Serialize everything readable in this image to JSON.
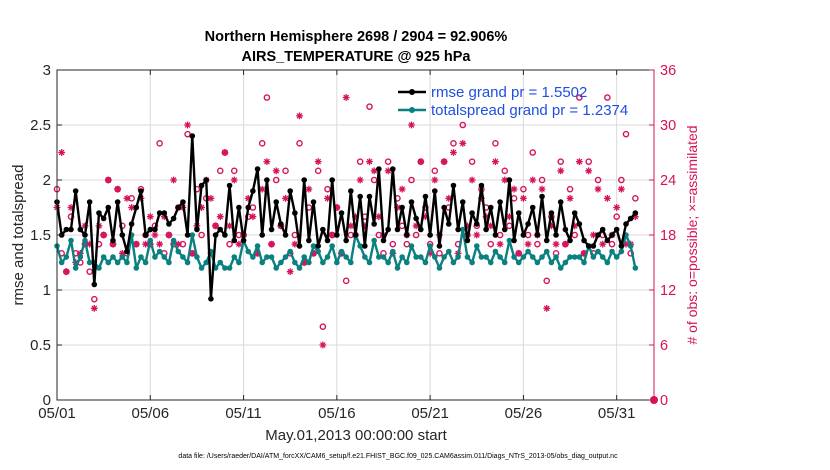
{
  "chart_data": {
    "type": "line",
    "title_line1": "Northern Hemisphere 2698 / 2904 = 92.906%",
    "title_line2": "AIRS_TEMPERATURE @ 925 hPa",
    "xlabel": "May.01,2013 00:00:00 start",
    "ylabel": "rmse and totalspread",
    "y2label": "# of obs: o=possible; ×=assimilated",
    "footnote": "data file: /Users/raeder/DAI/ATM_forcXX/CAM6_setup/f.e21.FHIST_BGC.f09_025.CAM6assim.011/Diags_NTrS_2013-05/obs_diag_output.nc",
    "xlim": [
      1,
      33
    ],
    "ylim": [
      0,
      3
    ],
    "y2lim": [
      0,
      36
    ],
    "xticks": [
      1,
      6,
      11,
      16,
      21,
      26,
      31
    ],
    "xtick_labels": [
      "05/01",
      "05/06",
      "05/11",
      "05/16",
      "05/21",
      "05/26",
      "05/31"
    ],
    "yticks": [
      0,
      0.5,
      1,
      1.5,
      2,
      2.5,
      3
    ],
    "ytick_labels": [
      "0",
      "0.5",
      "1",
      "1.5",
      "2",
      "2.5",
      "3"
    ],
    "y2ticks": [
      0,
      6,
      12,
      18,
      24,
      30,
      36
    ],
    "y2tick_labels": [
      "0",
      "6",
      "12",
      "18",
      "24",
      "30",
      "36"
    ],
    "grid": true,
    "legend": {
      "location": "top-right",
      "entries": [
        "rmse grand pr = 1.5502",
        "totalspread grand pr = 1.2374"
      ]
    },
    "series": [
      {
        "name": "rmse grand pr = 1.5502",
        "color": "#000000",
        "x": [
          1.0,
          1.25,
          1.5,
          1.75,
          2.0,
          2.25,
          2.5,
          2.75,
          3.0,
          3.25,
          3.5,
          3.75,
          4.0,
          4.25,
          4.5,
          4.75,
          5.0,
          5.25,
          5.5,
          5.75,
          6.0,
          6.25,
          6.5,
          6.75,
          7.0,
          7.25,
          7.5,
          7.75,
          8.0,
          8.25,
          8.5,
          8.75,
          9.0,
          9.25,
          9.5,
          9.75,
          10.0,
          10.25,
          10.5,
          10.75,
          11.0,
          11.25,
          11.5,
          11.75,
          12.0,
          12.25,
          12.5,
          12.75,
          13.0,
          13.25,
          13.5,
          13.75,
          14.0,
          14.25,
          14.5,
          14.75,
          15.0,
          15.25,
          15.5,
          15.75,
          16.0,
          16.25,
          16.5,
          16.75,
          17.0,
          17.25,
          17.5,
          17.75,
          18.0,
          18.25,
          18.5,
          18.75,
          19.0,
          19.25,
          19.5,
          19.75,
          20.0,
          20.25,
          20.5,
          20.75,
          21.0,
          21.25,
          21.5,
          21.75,
          22.0,
          22.25,
          22.5,
          22.75,
          23.0,
          23.25,
          23.5,
          23.75,
          24.0,
          24.25,
          24.5,
          24.75,
          25.0,
          25.25,
          25.5,
          25.75,
          26.0,
          26.25,
          26.5,
          26.75,
          27.0,
          27.25,
          27.5,
          27.75,
          28.0,
          28.25,
          28.5,
          28.75,
          29.0,
          29.25,
          29.5,
          29.75,
          30.0,
          30.25,
          30.5,
          30.75,
          31.0,
          31.25,
          31.5,
          31.75,
          32.0
        ],
        "values": [
          1.8,
          1.5,
          1.55,
          1.55,
          1.9,
          1.55,
          1.5,
          1.8,
          1.05,
          1.7,
          1.65,
          1.75,
          1.45,
          1.8,
          1.5,
          1.35,
          1.6,
          1.75,
          1.9,
          1.5,
          1.55,
          1.55,
          1.7,
          1.7,
          1.6,
          1.65,
          1.75,
          1.8,
          1.5,
          2.4,
          1.55,
          1.95,
          2.0,
          0.92,
          1.5,
          1.55,
          1.5,
          1.95,
          1.45,
          1.75,
          1.45,
          1.75,
          1.9,
          2.1,
          1.5,
          2.0,
          1.55,
          1.8,
          1.6,
          1.5,
          1.9,
          1.7,
          1.4,
          2.0,
          1.45,
          1.8,
          1.4,
          1.55,
          1.45,
          2.0,
          1.5,
          1.7,
          1.45,
          1.9,
          1.5,
          1.85,
          1.4,
          1.85,
          1.6,
          2.1,
          1.45,
          1.55,
          2.1,
          1.55,
          1.75,
          1.5,
          1.8,
          1.65,
          1.55,
          1.85,
          1.5,
          1.9,
          1.4,
          1.75,
          1.6,
          1.95,
          1.55,
          1.8,
          1.45,
          1.7,
          1.6,
          1.95,
          1.55,
          1.75,
          1.5,
          1.8,
          1.55,
          2.0,
          1.45,
          1.7,
          1.5,
          1.6,
          1.75,
          1.5,
          1.85,
          1.45,
          1.7,
          1.5,
          1.8,
          1.55,
          1.45,
          1.7,
          1.6,
          1.45,
          1.4,
          1.4,
          1.5,
          1.55,
          1.45,
          1.5,
          1.55,
          1.4,
          1.6,
          1.65,
          1.7
        ]
      },
      {
        "name": "totalspread grand pr = 1.2374",
        "color": "#0a8080",
        "x": [
          1.0,
          1.25,
          1.5,
          1.75,
          2.0,
          2.25,
          2.5,
          2.75,
          3.0,
          3.25,
          3.5,
          3.75,
          4.0,
          4.25,
          4.5,
          4.75,
          5.0,
          5.25,
          5.5,
          5.75,
          6.0,
          6.25,
          6.5,
          6.75,
          7.0,
          7.25,
          7.5,
          7.75,
          8.0,
          8.25,
          8.5,
          8.75,
          9.0,
          9.25,
          9.5,
          9.75,
          10.0,
          10.25,
          10.5,
          10.75,
          11.0,
          11.25,
          11.5,
          11.75,
          12.0,
          12.25,
          12.5,
          12.75,
          13.0,
          13.25,
          13.5,
          13.75,
          14.0,
          14.25,
          14.5,
          14.75,
          15.0,
          15.25,
          15.5,
          15.75,
          16.0,
          16.25,
          16.5,
          16.75,
          17.0,
          17.25,
          17.5,
          17.75,
          18.0,
          18.25,
          18.5,
          18.75,
          19.0,
          19.25,
          19.5,
          19.75,
          20.0,
          20.25,
          20.5,
          20.75,
          21.0,
          21.25,
          21.5,
          21.75,
          22.0,
          22.25,
          22.5,
          22.75,
          23.0,
          23.25,
          23.5,
          23.75,
          24.0,
          24.25,
          24.5,
          24.75,
          25.0,
          25.25,
          25.5,
          25.75,
          26.0,
          26.25,
          26.5,
          26.75,
          27.0,
          27.25,
          27.5,
          27.75,
          28.0,
          28.25,
          28.5,
          28.75,
          29.0,
          29.25,
          29.5,
          29.75,
          30.0,
          30.25,
          30.5,
          30.75,
          31.0,
          31.25,
          31.5,
          31.75,
          32.0
        ],
        "values": [
          1.4,
          1.25,
          1.3,
          1.45,
          1.2,
          1.3,
          1.45,
          1.25,
          1.25,
          1.2,
          1.3,
          1.25,
          1.3,
          1.25,
          1.3,
          1.25,
          1.5,
          1.2,
          1.3,
          1.25,
          1.45,
          1.3,
          1.35,
          1.3,
          1.25,
          1.45,
          1.35,
          1.3,
          1.25,
          1.5,
          1.3,
          1.2,
          1.25,
          1.35,
          1.2,
          1.25,
          1.2,
          1.2,
          1.3,
          1.25,
          1.45,
          1.35,
          1.3,
          1.4,
          1.25,
          1.3,
          1.3,
          1.2,
          1.25,
          1.3,
          1.35,
          1.25,
          1.2,
          1.3,
          1.25,
          1.4,
          1.35,
          1.25,
          1.3,
          1.4,
          1.25,
          1.35,
          1.3,
          1.25,
          1.5,
          1.4,
          1.3,
          1.25,
          1.45,
          1.3,
          1.3,
          1.25,
          1.35,
          1.2,
          1.3,
          1.25,
          1.4,
          1.3,
          1.3,
          1.25,
          1.4,
          1.3,
          1.2,
          1.3,
          1.35,
          1.25,
          1.3,
          1.55,
          1.3,
          1.25,
          1.4,
          1.3,
          1.3,
          1.25,
          1.35,
          1.3,
          1.25,
          1.45,
          1.3,
          1.25,
          1.3,
          1.35,
          1.3,
          1.25,
          1.3,
          1.35,
          1.25,
          1.3,
          1.2,
          1.25,
          1.3,
          1.3,
          1.3,
          1.25,
          1.4,
          1.3,
          1.35,
          1.3,
          1.25,
          1.35,
          1.3,
          1.35,
          1.5,
          1.4,
          1.2
        ]
      }
    ],
    "obs_counts": {
      "color": "#d6125b",
      "axis": "right",
      "possible_marker": "o",
      "assimilated_marker": "*",
      "x": [
        1.0,
        1.25,
        1.5,
        1.75,
        2.0,
        2.25,
        2.5,
        2.75,
        3.0,
        3.25,
        3.5,
        3.75,
        4.0,
        4.25,
        4.5,
        4.75,
        5.0,
        5.25,
        5.5,
        5.75,
        6.0,
        6.25,
        6.5,
        6.75,
        7.0,
        7.25,
        7.5,
        7.75,
        8.0,
        8.25,
        8.5,
        8.75,
        9.0,
        9.25,
        9.5,
        9.75,
        10.0,
        10.25,
        10.5,
        10.75,
        11.0,
        11.25,
        11.5,
        11.75,
        12.0,
        12.25,
        12.5,
        12.75,
        13.0,
        13.25,
        13.5,
        13.75,
        14.0,
        14.25,
        14.5,
        14.75,
        15.0,
        15.25,
        15.5,
        15.75,
        16.0,
        16.25,
        16.5,
        16.75,
        17.0,
        17.25,
        17.5,
        17.75,
        18.0,
        18.25,
        18.5,
        18.75,
        19.0,
        19.25,
        19.5,
        19.75,
        20.0,
        20.25,
        20.5,
        20.75,
        21.0,
        21.25,
        21.5,
        21.75,
        22.0,
        22.25,
        22.5,
        22.75,
        23.0,
        23.25,
        23.5,
        23.75,
        24.0,
        24.25,
        24.5,
        24.75,
        25.0,
        25.25,
        25.5,
        25.75,
        26.0,
        26.25,
        26.5,
        26.75,
        27.0,
        27.25,
        27.5,
        27.75,
        28.0,
        28.25,
        28.5,
        28.75,
        29.0,
        29.25,
        29.5,
        29.75,
        30.0,
        30.25,
        30.5,
        30.75,
        31.0,
        31.25,
        31.5,
        31.75,
        32.0
      ],
      "possible": [
        23,
        16,
        14,
        20,
        16,
        15,
        17,
        14,
        11,
        17,
        18,
        24,
        17,
        23,
        19,
        16,
        22,
        17,
        23,
        18,
        17,
        19,
        28,
        16,
        18,
        17,
        21,
        17,
        29,
        16,
        23,
        18,
        22,
        16,
        19,
        25,
        27,
        17,
        25,
        18,
        18,
        20,
        21,
        16,
        28,
        33,
        17,
        24,
        19,
        25,
        16,
        18,
        28,
        15,
        21,
        16,
        25,
        8,
        23,
        18,
        21,
        16,
        13,
        18,
        18,
        26,
        20,
        32,
        24,
        18,
        16,
        26,
        17,
        22,
        19,
        17,
        24,
        18,
        26,
        21,
        17,
        25,
        16,
        26,
        21,
        28,
        17,
        30,
        18,
        26,
        19,
        23,
        21,
        17,
        28,
        18,
        25,
        19,
        22,
        16,
        23,
        18,
        27,
        17,
        24,
        13,
        20,
        16,
        26,
        17,
        23,
        18,
        33,
        16,
        26,
        16,
        24,
        18,
        33,
        17,
        20,
        24,
        29,
        16,
        22
      ],
      "assimilated": [
        21,
        27,
        14,
        21,
        15,
        16,
        19,
        17,
        10,
        19,
        18,
        24,
        17,
        23,
        16,
        22,
        21,
        17,
        22,
        17,
        20,
        18,
        17,
        20,
        18,
        24,
        17,
        21,
        30,
        16,
        19,
        21,
        24,
        22,
        19,
        20,
        27,
        19,
        24,
        17,
        18,
        22,
        20,
        16,
        23,
        26,
        17,
        25,
        19,
        22,
        14,
        17,
        31,
        15,
        23,
        16,
        26,
        6,
        22,
        18,
        21,
        16,
        33,
        19,
        20,
        24,
        19,
        26,
        25,
        20,
        18,
        25,
        16,
        21,
        23,
        18,
        30,
        19,
        26,
        20,
        16,
        24,
        18,
        26,
        22,
        27,
        16,
        28,
        19,
        24,
        18,
        22,
        20,
        19,
        26,
        17,
        24,
        20,
        23,
        16,
        22,
        17,
        24,
        18,
        23,
        10,
        19,
        17,
        25,
        17,
        22,
        19,
        26,
        16,
        25,
        18,
        23,
        17,
        22,
        18,
        21,
        23,
        17,
        17,
        20
      ]
    }
  }
}
